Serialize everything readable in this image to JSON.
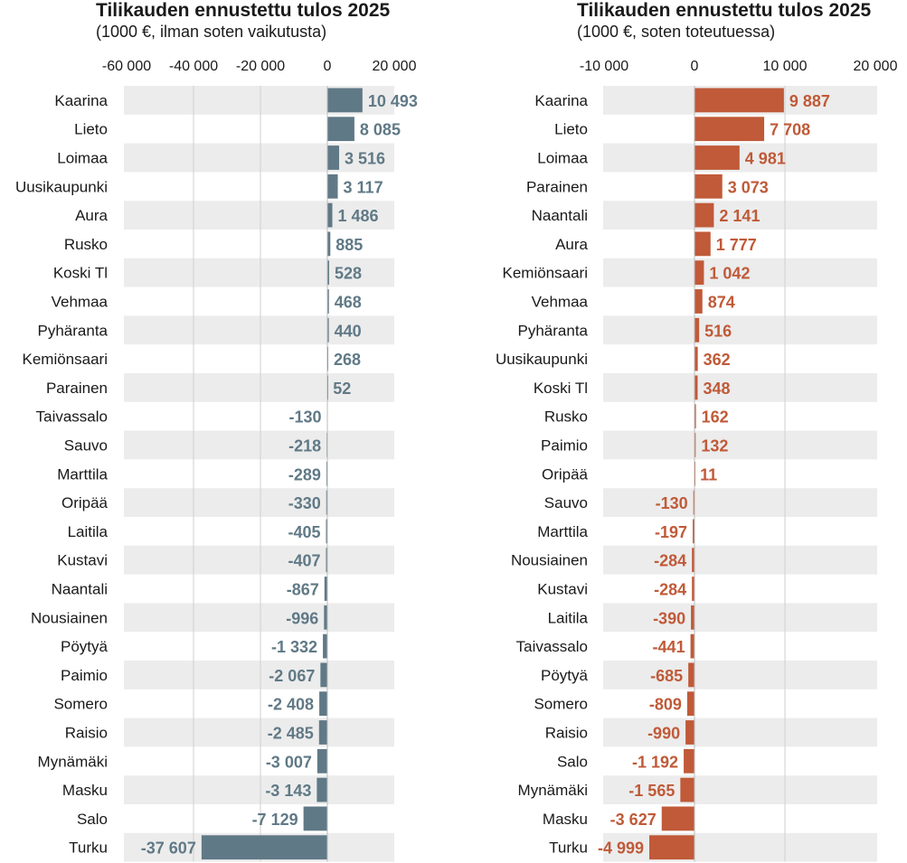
{
  "chart_data": [
    {
      "type": "bar",
      "orientation": "horizontal",
      "title": "Tilikauden ennustettu tulos 2025",
      "subtitle": "(1000 €, ilman soten vaikutusta)",
      "xlim": [
        -60000,
        20000
      ],
      "ticks": [
        -60000,
        -40000,
        -20000,
        0,
        20000
      ],
      "tick_labels": [
        "-60 000",
        "-40 000",
        "-20 000",
        "0",
        "20 000"
      ],
      "grid": true,
      "color": "#607986",
      "categories": [
        "Kaarina",
        "Lieto",
        "Loimaa",
        "Uusikaupunki",
        "Aura",
        "Rusko",
        "Koski Tl",
        "Vehmaa",
        "Pyhäranta",
        "Kemiönsaari",
        "Parainen",
        "Taivassalo",
        "Sauvo",
        "Marttila",
        "Oripää",
        "Laitila",
        "Kustavi",
        "Naantali",
        "Nousiainen",
        "Pöytyä",
        "Paimio",
        "Somero",
        "Raisio",
        "Mynämäki",
        "Masku",
        "Salo",
        "Turku"
      ],
      "values": [
        10493,
        8085,
        3516,
        3117,
        1486,
        885,
        528,
        468,
        440,
        268,
        52,
        -130,
        -218,
        -289,
        -330,
        -405,
        -407,
        -867,
        -996,
        -1332,
        -2067,
        -2408,
        -2485,
        -3007,
        -3143,
        -7129,
        -37607
      ],
      "value_labels": [
        "10 493",
        "8 085",
        "3 516",
        "3 117",
        "1 486",
        "885",
        "528",
        "468",
        "440",
        "268",
        "52",
        "-130",
        "-218",
        "-289",
        "-330",
        "-405",
        "-407",
        "-867",
        "-996",
        "-1 332",
        "-2 067",
        "-2 408",
        "-2 485",
        "-3 007",
        "-3 143",
        "-7 129",
        "-37 607"
      ]
    },
    {
      "type": "bar",
      "orientation": "horizontal",
      "title": "Tilikauden ennustettu tulos 2025",
      "subtitle": "(1000 €, soten toteutuessa)",
      "xlim": [
        -10000,
        20000
      ],
      "ticks": [
        -10000,
        0,
        10000,
        20000
      ],
      "tick_labels": [
        "-10 000",
        "0",
        "10 000",
        "20 000"
      ],
      "grid": true,
      "color": "#c05a38",
      "categories": [
        "Kaarina",
        "Lieto",
        "Loimaa",
        "Parainen",
        "Naantali",
        "Aura",
        "Kemiönsaari",
        "Vehmaa",
        "Pyhäranta",
        "Uusikaupunki",
        "Koski Tl",
        "Rusko",
        "Paimio",
        "Oripää",
        "Sauvo",
        "Marttila",
        "Nousiainen",
        "Kustavi",
        "Laitila",
        "Taivassalo",
        "Pöytyä",
        "Somero",
        "Raisio",
        "Salo",
        "Mynämäki",
        "Masku",
        "Turku"
      ],
      "values": [
        9887,
        7708,
        4981,
        3073,
        2141,
        1777,
        1042,
        874,
        516,
        362,
        348,
        162,
        132,
        11,
        -130,
        -197,
        -284,
        -284,
        -390,
        -441,
        -685,
        -809,
        -990,
        -1192,
        -1565,
        -3627,
        -4999
      ],
      "value_labels": [
        "9 887",
        "7 708",
        "4 981",
        "3 073",
        "2 141",
        "1 777",
        "1 042",
        "874",
        "516",
        "362",
        "348",
        "162",
        "132",
        "11",
        "-130",
        "-197",
        "-284",
        "-284",
        "-390",
        "-441",
        "-685",
        "-809",
        "-990",
        "-1 192",
        "-1 565",
        "-3 627",
        "-4 999"
      ]
    }
  ]
}
